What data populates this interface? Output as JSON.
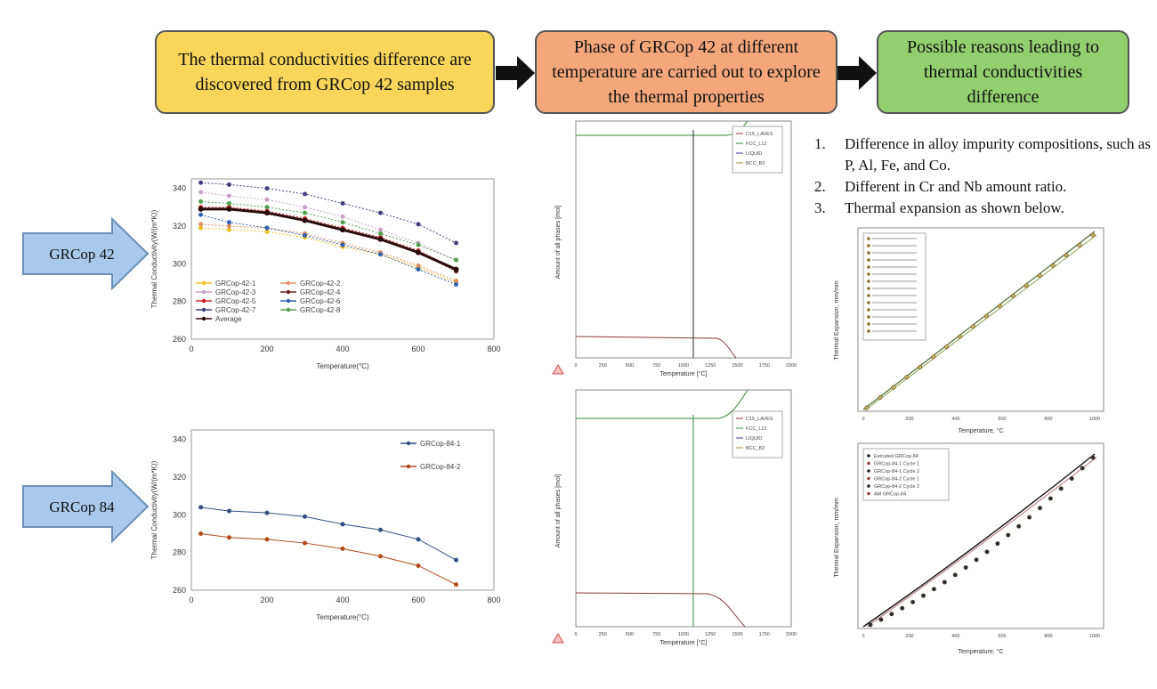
{
  "flow": {
    "box1": "The thermal conductivities difference are discovered from GRCop 42 samples",
    "box2": "Phase of GRCop 42 at different temperature are carried out to explore the thermal properties",
    "box3": "Possible reasons leading to thermal conductivities difference",
    "box1_color": "#f9d65a",
    "box2_color": "#f4a77a",
    "box3_color": "#92cf6e"
  },
  "labels": {
    "grcop42": "GRCop 42",
    "grcop84": "GRCop 84",
    "arrow_color": "#a8c8ec"
  },
  "reasons": [
    {
      "num": "1.",
      "text": "Difference in alloy impurity compositions, such as P, Al, Fe, and Co."
    },
    {
      "num": "2.",
      "text": "Different in Cr and Nb amount ratio."
    },
    {
      "num": "3.",
      "text": "Thermal expansion as shown below."
    }
  ],
  "chart42": {
    "ylabel": "Thermal Conductivity(W/(m*K))",
    "xlabel": "Temperature(°C)",
    "yticks": [
      "340",
      "320",
      "300",
      "280",
      "260"
    ],
    "xticks": [
      "0",
      "200",
      "400",
      "600",
      "800"
    ],
    "legend": [
      "GRCop-42-1",
      "GRCop-42-2",
      "GRCop-42-3",
      "GRCop-42-4",
      "GRCop-42-5",
      "GRCop-42-6",
      "GRCop-42-7",
      "GRCop-42-8",
      "Average"
    ]
  },
  "chart84": {
    "ylabel": "Thermal Conductivity(W/(m*K))",
    "xlabel": "Temperature(°C)",
    "yticks": [
      "340",
      "320",
      "300",
      "280",
      "260"
    ],
    "xticks": [
      "0",
      "200",
      "400",
      "600",
      "800"
    ],
    "legend": [
      "GRCop-84-1",
      "GRCop-84-2"
    ]
  },
  "phase1": {
    "ylabel": "Amount of all phases [mol]",
    "xlabel": "Temperature [°C]",
    "xticks": [
      "0",
      "250",
      "500",
      "750",
      "1000",
      "1250",
      "1500",
      "1750",
      "2000"
    ],
    "legend": [
      "C15_LAVES",
      "FCC_L12",
      "LIQUID",
      "BCC_B2"
    ]
  },
  "phase2": {
    "ylabel": "Amount of all phases [mol]",
    "xlabel": "Temperature [°C]",
    "xticks": [
      "0",
      "250",
      "500",
      "750",
      "1000",
      "1250",
      "1500",
      "1750",
      "2000"
    ],
    "legend": [
      "C15_LAVES",
      "FCC_L12",
      "LIQUID",
      "BCC_B2"
    ]
  },
  "te42": {
    "ylabel": "Thermal Expansion, mm/mm",
    "xlabel": "Temperature, °C",
    "xticks": [
      "0",
      "200",
      "400",
      "600",
      "800",
      "1000"
    ]
  },
  "te84": {
    "ylabel": "Thermal Expansion, mm/mm",
    "xlabel": "Temperature, °C",
    "xticks": [
      "0",
      "200",
      "400",
      "600",
      "800",
      "1000"
    ],
    "legend": [
      "Extruded GRCop-84",
      "GRCop-84-1 Cycle 1",
      "GRCop-84-1 Cycle 2",
      "GRCop-84-2 Cycle 1",
      "GRCop-84-2 Cycle 2",
      "AM GRCop-84"
    ]
  },
  "chart_data": [
    {
      "type": "line",
      "xlabel": "Temperature(°C)",
      "ylabel": "Thermal Conductivity(W/(m*K))",
      "xlim": [
        0,
        800
      ],
      "ylim": [
        260,
        345
      ],
      "x": [
        25,
        100,
        200,
        300,
        400,
        500,
        600,
        700
      ],
      "series": [
        {
          "name": "GRCop-42-1",
          "values": [
            319,
            318,
            317,
            314,
            309,
            305,
            298,
            290
          ],
          "color": "#f0c020"
        },
        {
          "name": "GRCop-42-2",
          "values": [
            321,
            320,
            319,
            316,
            311,
            306,
            299,
            291
          ],
          "color": "#e09060"
        },
        {
          "name": "GRCop-42-3",
          "values": [
            338,
            336,
            334,
            330,
            325,
            318,
            311,
            302
          ],
          "color": "#c8a0c8"
        },
        {
          "name": "GRCop-42-4",
          "values": [
            329,
            329,
            327,
            323,
            318,
            313,
            306,
            296
          ],
          "color": "#702020"
        },
        {
          "name": "GRCop-42-5",
          "values": [
            330,
            330,
            328,
            324,
            319,
            314,
            307,
            297
          ],
          "color": "#d02020"
        },
        {
          "name": "GRCop-42-6",
          "values": [
            326,
            322,
            319,
            315,
            310,
            305,
            297,
            289
          ],
          "color": "#3060b0"
        },
        {
          "name": "GRCop-42-7",
          "values": [
            343,
            342,
            340,
            337,
            332,
            327,
            321,
            311
          ],
          "color": "#404080"
        },
        {
          "name": "GRCop-42-8",
          "values": [
            333,
            332,
            330,
            327,
            322,
            316,
            310,
            302
          ],
          "color": "#50a050"
        },
        {
          "name": "Average",
          "values": [
            329,
            329,
            327,
            323,
            318,
            313,
            306,
            297
          ],
          "color": "#2a0a0a"
        }
      ]
    },
    {
      "type": "line",
      "xlabel": "Temperature(°C)",
      "ylabel": "Thermal Conductivity(W/(m*K))",
      "xlim": [
        0,
        800
      ],
      "ylim": [
        260,
        345
      ],
      "x": [
        25,
        100,
        200,
        300,
        400,
        500,
        600,
        700
      ],
      "series": [
        {
          "name": "GRCop-84-1",
          "values": [
            304,
            302,
            301,
            299,
            295,
            292,
            287,
            276
          ],
          "color": "#2f4f80"
        },
        {
          "name": "GRCop-84-2",
          "values": [
            290,
            288,
            287,
            285,
            282,
            278,
            273,
            263
          ],
          "color": "#b04a1a"
        }
      ]
    }
  ]
}
